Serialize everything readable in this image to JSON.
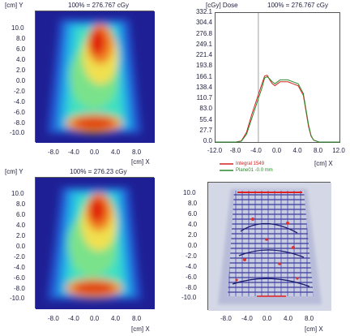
{
  "panels": {
    "top_left": {
      "y_unit": "[cm] Y",
      "header": "100% = 276.767 cGy",
      "x_unit": "[cm] X"
    },
    "top_right": {
      "y_unit": "[cGy] Dose",
      "header": "100% = 276.767 cGy",
      "x_unit": "[cm] X"
    },
    "bottom_left": {
      "y_unit": "[cm] Y",
      "header": "100% = 276.23 cGy",
      "x_unit": "[cm] X"
    },
    "bottom_right": {
      "x_unit": "[cm] X"
    }
  },
  "map_y_ticks": [
    "10.0",
    "8.0",
    "6.0",
    "4.0",
    "2.0",
    "0.0",
    "-2.0",
    "-4.0",
    "-6.0",
    "-8.0",
    "-10.0"
  ],
  "map_x_ticks": [
    "-8.0",
    "-4.0",
    "0.0",
    "4.0",
    "8.0"
  ],
  "colors": {
    "line1": "#d62020",
    "line2": "#2a8a2a",
    "frame": "#555555"
  },
  "chart_data": {
    "type": "line",
    "ylabel": "[cGy] Dose",
    "xlabel": "[cm] X",
    "y_ticks": [
      "332.1",
      "304.4",
      "276.8",
      "249.1",
      "221.4",
      "193.8",
      "166.1",
      "138.4",
      "110.7",
      "83.0",
      "55.4",
      "27.7",
      "0.0"
    ],
    "x_ticks": [
      "-12.0",
      "-8.0",
      "-4.0",
      "0.0",
      "4.0",
      "8.0",
      "12.0"
    ],
    "xlim": [
      -12,
      12
    ],
    "ylim": [
      0,
      332.1
    ],
    "marker_x": -3.7,
    "legend": [
      "Integral 1549",
      "Plane01 -0.0 mm"
    ],
    "series": [
      {
        "name": "Integral 1549",
        "x": [
          -12,
          -8,
          -7,
          -6,
          -5,
          -4,
          -3,
          -2.5,
          -2,
          -1.5,
          -1,
          -0.5,
          0,
          0.5,
          1,
          2,
          3,
          4,
          5,
          5.5,
          6,
          6.5,
          7,
          8,
          12
        ],
        "y": [
          0,
          0,
          3,
          25,
          70,
          110,
          150,
          170,
          172,
          160,
          150,
          145,
          150,
          155,
          155,
          155,
          150,
          145,
          120,
          80,
          40,
          15,
          5,
          0,
          0
        ]
      },
      {
        "name": "Plane01 -0.0 mm",
        "x": [
          -12,
          -8,
          -7,
          -6,
          -5,
          -4,
          -3,
          -2.5,
          -2,
          -1.5,
          -1,
          -0.5,
          0,
          0.5,
          1,
          2,
          3,
          4,
          5,
          5.5,
          6,
          6.5,
          7,
          8,
          12
        ],
        "y": [
          0,
          0,
          2,
          20,
          60,
          100,
          140,
          165,
          168,
          162,
          155,
          150,
          155,
          160,
          160,
          160,
          155,
          150,
          125,
          85,
          45,
          17,
          5,
          0,
          0
        ]
      }
    ]
  }
}
